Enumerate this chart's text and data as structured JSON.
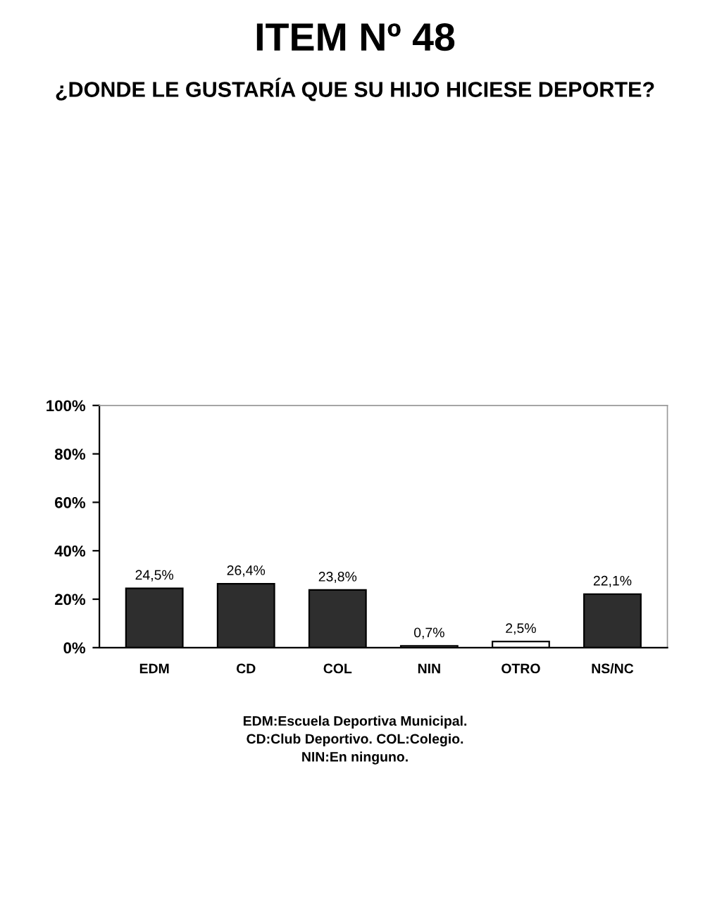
{
  "chart_data": {
    "type": "bar",
    "title": "ITEM Nº 48",
    "subtitle": "¿DONDE LE GUSTARÍA QUE SU HIJO HICIESE DEPORTE?",
    "categories": [
      "EDM",
      "CD",
      "COL",
      "NIN",
      "OTRO",
      "NS/NC"
    ],
    "values": [
      24.5,
      26.4,
      23.8,
      0.7,
      2.5,
      22.1
    ],
    "value_labels": [
      "24,5%",
      "26,4%",
      "23,8%",
      "0,7%",
      "2,5%",
      "22,1%"
    ],
    "colors": [
      "#2e2e2e",
      "#2e2e2e",
      "#2e2e2e",
      "#ffffff",
      "#ffffff",
      "#2e2e2e"
    ],
    "ylim": [
      0,
      100
    ],
    "yticks": [
      {
        "value": 0,
        "label": "0%"
      },
      {
        "value": 20,
        "label": "20%"
      },
      {
        "value": 40,
        "label": "40%"
      },
      {
        "value": 60,
        "label": "60%"
      },
      {
        "value": 80,
        "label": "80%"
      },
      {
        "value": 100,
        "label": "100%"
      }
    ],
    "grid": false,
    "annotations": [
      "EDM:Escuela Deportiva Municipal.",
      "CD:Club Deportivo. COL:Colegio.",
      "NIN:En ninguno."
    ]
  }
}
